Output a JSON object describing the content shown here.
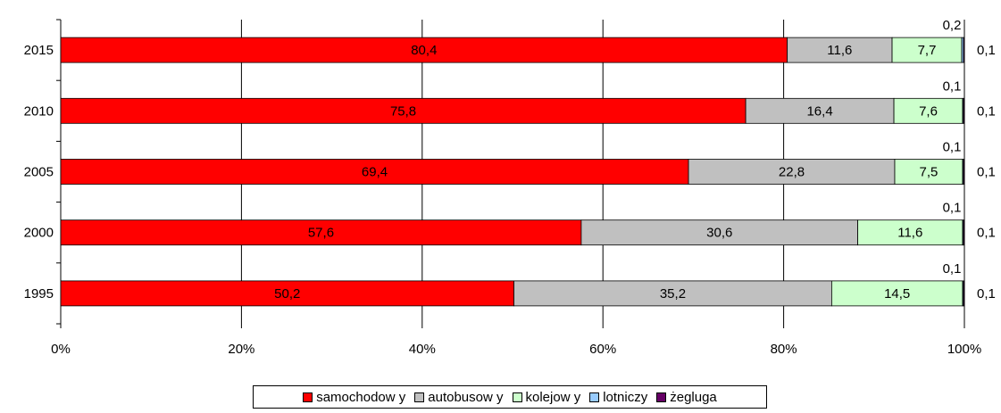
{
  "chart_data": {
    "type": "bar",
    "orientation": "horizontal",
    "stacked": "percent",
    "categories": [
      "2015",
      "2010",
      "2005",
      "2000",
      "1995"
    ],
    "series": [
      {
        "name": "samochodow y",
        "color": "#ff0000",
        "values": [
          80.4,
          75.8,
          69.4,
          57.6,
          50.2
        ]
      },
      {
        "name": "autobusow y",
        "color": "#c0c0c0",
        "values": [
          11.6,
          16.4,
          22.8,
          30.6,
          35.2
        ]
      },
      {
        "name": "kolejow y",
        "color": "#ccffcc",
        "values": [
          7.7,
          7.6,
          7.5,
          11.6,
          14.5
        ]
      },
      {
        "name": "lotniczy",
        "color": "#99ccff",
        "values": [
          0.2,
          0.1,
          0.1,
          0.1,
          0.1
        ]
      },
      {
        "name": "żegluga",
        "color": "#660066",
        "values": [
          0.1,
          0.1,
          0.1,
          0.1,
          0.1
        ]
      }
    ],
    "value_labels": [
      [
        "80,4",
        "75,8",
        "69,4",
        "57,6",
        "50,2"
      ],
      [
        "11,6",
        "16,4",
        "22,8",
        "30,6",
        "35,2"
      ],
      [
        "7,7",
        "7,6",
        "7,5",
        "11,6",
        "14,5"
      ],
      [
        "0,2",
        "0,1",
        "0,1",
        "0,1",
        "0,1"
      ],
      [
        "0,1",
        "0,1",
        "0,1",
        "0,1",
        "0,1"
      ]
    ],
    "x_ticks": [
      "0%",
      "20%",
      "40%",
      "60%",
      "80%",
      "100%"
    ],
    "xlim": [
      0,
      100
    ],
    "grid": true,
    "legend_position": "bottom"
  }
}
